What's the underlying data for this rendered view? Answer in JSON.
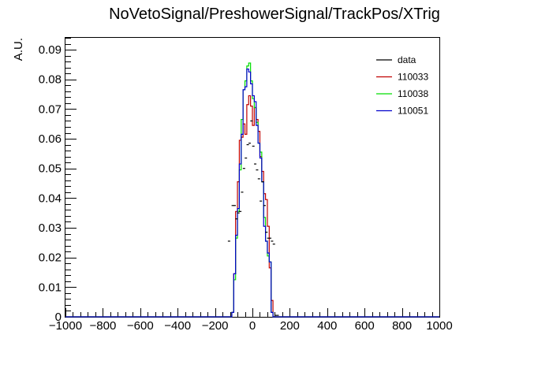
{
  "chart_data": {
    "type": "line",
    "style": "histogram",
    "title": "NoVetoSignal/PreshowerSignal/TrackPos/XTrig",
    "xlabel": "",
    "ylabel": "A.U.",
    "xlim": [
      -1000,
      1000
    ],
    "ylim": [
      0,
      0.094
    ],
    "xticks": [
      "−1000",
      "−800",
      "−600",
      "−400",
      "−200",
      "0",
      "200",
      "400",
      "600",
      "800",
      "1000"
    ],
    "yticks": [
      "0",
      "0.01",
      "0.02",
      "0.03",
      "0.04",
      "0.05",
      "0.06",
      "0.07",
      "0.08",
      "0.09"
    ],
    "grid": false,
    "legend_position": "top-right",
    "bin_edges": [
      -140,
      -130,
      -120,
      -110,
      -100,
      -90,
      -80,
      -70,
      -60,
      -50,
      -40,
      -30,
      -20,
      -10,
      0,
      10,
      20,
      30,
      40,
      50,
      60,
      70,
      80,
      90,
      100,
      110,
      120,
      130,
      140,
      150
    ],
    "series": [
      {
        "name": "data",
        "render": "points",
        "color": "#000000",
        "points": [
          {
            "x": -125,
            "y": 0.0255
          },
          {
            "x": -105,
            "y": 0.0375
          },
          {
            "x": -95,
            "y": 0.0375
          },
          {
            "x": -85,
            "y": 0.033
          },
          {
            "x": -75,
            "y": 0.035
          },
          {
            "x": -65,
            "y": 0.0355
          },
          {
            "x": -55,
            "y": 0.042
          },
          {
            "x": -45,
            "y": 0.05
          },
          {
            "x": -35,
            "y": 0.0535
          },
          {
            "x": -25,
            "y": 0.058
          },
          {
            "x": -15,
            "y": 0.0585
          },
          {
            "x": -5,
            "y": 0.066
          },
          {
            "x": 5,
            "y": 0.0575
          },
          {
            "x": 15,
            "y": 0.0515
          },
          {
            "x": 25,
            "y": 0.0495
          },
          {
            "x": 35,
            "y": 0.0465
          },
          {
            "x": 45,
            "y": 0.039
          },
          {
            "x": 55,
            "y": 0.0455
          },
          {
            "x": 65,
            "y": 0.0375
          },
          {
            "x": 75,
            "y": 0.0285
          },
          {
            "x": 85,
            "y": 0.0265
          },
          {
            "x": 95,
            "y": 0.0265
          },
          {
            "x": 105,
            "y": 0.0255
          },
          {
            "x": 115,
            "y": 0.0245
          },
          {
            "x": 125,
            "y": 0.0005
          },
          {
            "x": 135,
            "y": 0.0005
          }
        ]
      },
      {
        "name": "110033",
        "render": "step",
        "color": "#c00000",
        "values": [
          0,
          0,
          0,
          0.0015,
          0.0145,
          0.0355,
          0.0455,
          0.0595,
          0.0605,
          0.065,
          0.0615,
          0.0715,
          0.0745,
          0.071,
          0.0645,
          0.0705,
          0.0665,
          0.0625,
          0.054,
          0.049,
          0.0415,
          0.0395,
          0.0305,
          0.0165,
          0.0055,
          0,
          0,
          0,
          0
        ]
      },
      {
        "name": "110038",
        "render": "step",
        "color": "#00dd00",
        "values": [
          0,
          0,
          0,
          0.0015,
          0.0125,
          0.0265,
          0.0355,
          0.0495,
          0.0665,
          0.0765,
          0.0795,
          0.0845,
          0.0855,
          0.0795,
          0.0735,
          0.0705,
          0.0655,
          0.0585,
          0.0555,
          0.0455,
          0.0335,
          0.0255,
          0.0205,
          0.0185,
          0.0015,
          0,
          0,
          0,
          0
        ]
      },
      {
        "name": "110051",
        "render": "step",
        "color": "#0000cc",
        "values": [
          0,
          0,
          0,
          0.0015,
          0.0145,
          0.0275,
          0.0365,
          0.0515,
          0.0615,
          0.0765,
          0.0775,
          0.0835,
          0.0825,
          0.0785,
          0.0745,
          0.0725,
          0.0645,
          0.0585,
          0.0535,
          0.0455,
          0.0305,
          0.0255,
          0.0215,
          0.0185,
          0.0015,
          0,
          0,
          0,
          0
        ]
      }
    ]
  }
}
